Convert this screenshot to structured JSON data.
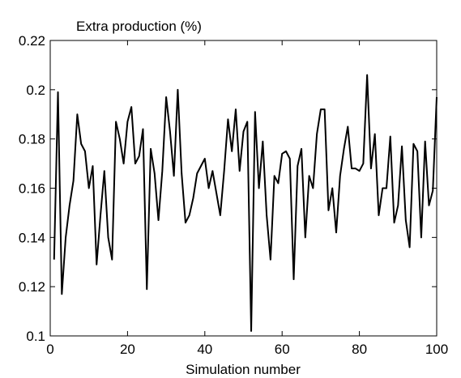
{
  "chart_data": {
    "type": "line",
    "title": "Extra production (%)",
    "xlabel": "Simulation number",
    "ylabel": "",
    "xlim": [
      0,
      100
    ],
    "ylim": [
      0.1,
      0.22
    ],
    "xticks": [
      0,
      20,
      40,
      60,
      80,
      100
    ],
    "yticks": [
      0.1,
      0.12,
      0.14,
      0.16,
      0.18,
      0.2,
      0.22
    ],
    "xtick_labels": [
      "0",
      "20",
      "40",
      "60",
      "80",
      "100"
    ],
    "ytick_labels": [
      "0.1",
      "0.12",
      "0.14",
      "0.16",
      "0.18",
      "0.2",
      "0.22"
    ],
    "grid": false,
    "line_color": "#000000",
    "series": [
      {
        "x": [
          1,
          2,
          3,
          4,
          5,
          6,
          7,
          8,
          9,
          10,
          11,
          12,
          13,
          14,
          15,
          16,
          17,
          18,
          19,
          20,
          21,
          22,
          23,
          24,
          25,
          26,
          27,
          28,
          29,
          30,
          31,
          32,
          33,
          34,
          35,
          36,
          37,
          38,
          39,
          40,
          41,
          42,
          43,
          44,
          45,
          46,
          47,
          48,
          49,
          50,
          51,
          52,
          53,
          54,
          55,
          56,
          57,
          58,
          59,
          60,
          61,
          62,
          63,
          64,
          65,
          66,
          67,
          68,
          69,
          70,
          71,
          72,
          73,
          74,
          75,
          76,
          77,
          78,
          79,
          80,
          81,
          82,
          83,
          84,
          85,
          86,
          87,
          88,
          89,
          90,
          91,
          92,
          93,
          94,
          95,
          96,
          97,
          98,
          99,
          100
        ],
        "values": [
          0.131,
          0.199,
          0.117,
          0.14,
          0.153,
          0.163,
          0.19,
          0.178,
          0.175,
          0.16,
          0.169,
          0.129,
          0.149,
          0.167,
          0.14,
          0.131,
          0.187,
          0.18,
          0.17,
          0.187,
          0.193,
          0.17,
          0.173,
          0.184,
          0.119,
          0.176,
          0.166,
          0.147,
          0.167,
          0.197,
          0.183,
          0.165,
          0.2,
          0.166,
          0.146,
          0.149,
          0.156,
          0.166,
          0.169,
          0.172,
          0.16,
          0.167,
          0.158,
          0.149,
          0.167,
          0.188,
          0.175,
          0.192,
          0.167,
          0.183,
          0.187,
          0.102,
          0.191,
          0.16,
          0.179,
          0.149,
          0.131,
          0.165,
          0.162,
          0.174,
          0.175,
          0.172,
          0.123,
          0.169,
          0.176,
          0.14,
          0.165,
          0.16,
          0.182,
          0.192,
          0.192,
          0.151,
          0.16,
          0.142,
          0.165,
          0.176,
          0.185,
          0.168,
          0.168,
          0.167,
          0.17,
          0.206,
          0.168,
          0.182,
          0.149,
          0.16,
          0.16,
          0.181,
          0.146,
          0.153,
          0.177,
          0.147,
          0.136,
          0.178,
          0.175,
          0.14,
          0.179,
          0.153,
          0.159,
          0.197
        ]
      }
    ]
  }
}
